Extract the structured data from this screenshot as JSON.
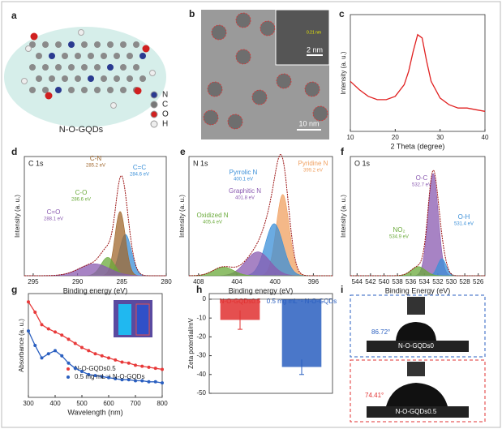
{
  "panel_labels": [
    "a",
    "b",
    "c",
    "d",
    "e",
    "f",
    "g",
    "h",
    "i"
  ],
  "panel_a": {
    "title": "N-O-GQDs",
    "legend": [
      "N",
      "C",
      "O",
      "H"
    ]
  },
  "panel_b": {
    "lattice": "0.21 nm",
    "scale_inset": "2 nm",
    "scale_main": "10 nm"
  },
  "panel_i": {
    "top_angle": "86.72°",
    "top_label": "N-O-GQDs0",
    "bottom_angle": "74.41°",
    "bottom_label": "N-O-GQDs0.5"
  },
  "chart_data": [
    {
      "type": "line",
      "xlabel": "2 Theta (degree)",
      "ylabel": "Intensity (a. u.)",
      "color": "#e02020",
      "x": [
        10,
        12,
        14,
        16,
        18,
        20,
        22,
        23,
        24,
        25,
        26,
        27,
        28,
        30,
        32,
        34,
        36,
        38,
        40
      ],
      "values": [
        40,
        35,
        31,
        29,
        29,
        31,
        38,
        46,
        58,
        68,
        66,
        52,
        40,
        30,
        26,
        24,
        24,
        23,
        22
      ],
      "xlim": [
        10,
        40
      ],
      "ylim": [
        10,
        80
      ],
      "xticks": [
        10,
        20,
        30,
        40
      ]
    },
    {
      "type": "peak_fit",
      "title": "C 1s",
      "xlabel": "Binding energy (eV)",
      "ylabel": "Intensity (a. u.)",
      "xlim": [
        296,
        280
      ],
      "ylim": [
        0,
        130
      ],
      "xticks": [
        295,
        290,
        285,
        280
      ],
      "envelope_color": "#9a1010",
      "peaks": [
        {
          "name": "C=C",
          "center": 284.6,
          "value_label": "284.6 eV",
          "height": 45,
          "width": 1.6,
          "color": "#3a8fd8"
        },
        {
          "name": "C-N",
          "center": 285.2,
          "value_label": "285.2 eV",
          "height": 70,
          "width": 1.4,
          "color": "#a0672c"
        },
        {
          "name": "C-O",
          "center": 286.6,
          "value_label": "286.6 eV",
          "height": 20,
          "width": 1.8,
          "color": "#6aaa3a"
        },
        {
          "name": "C=O",
          "center": 288.1,
          "value_label": "288.1 eV",
          "height": 13,
          "width": 4,
          "color": "#8a5ab0"
        }
      ]
    },
    {
      "type": "peak_fit",
      "title": "N 1s",
      "xlabel": "Binding energy (eV)",
      "ylabel": "Intensity (a. u.)",
      "xlim": [
        409,
        394
      ],
      "ylim": [
        0,
        110
      ],
      "xticks": [
        408,
        404,
        400,
        396
      ],
      "envelope_color": "#9a1010",
      "peaks": [
        {
          "name": "Pyridine N",
          "center": 399.2,
          "value_label": "399.2 eV",
          "height": 75,
          "width": 1.6,
          "color": "#f0a060"
        },
        {
          "name": "Pyrrolic N",
          "center": 400.1,
          "value_label": "400.1 eV",
          "height": 48,
          "width": 2.2,
          "color": "#3a8fd8"
        },
        {
          "name": "Graphitic N",
          "center": 401.8,
          "value_label": "401.8 eV",
          "height": 22,
          "width": 3,
          "color": "#8a5ab0"
        },
        {
          "name": "Oxidized N",
          "center": 405.4,
          "value_label": "405.4 eV",
          "height": 8,
          "width": 2.5,
          "color": "#6aaa3a"
        }
      ]
    },
    {
      "type": "peak_fit",
      "title": "O 1s",
      "xlabel": "Binding Energy (eV)",
      "ylabel": "Intensity (a. u.)",
      "xlim": [
        545,
        525
      ],
      "ylim": [
        0,
        105
      ],
      "xticks": [
        544,
        542,
        540,
        538,
        536,
        534,
        532,
        530,
        528,
        526
      ],
      "envelope_color": "#9a1010",
      "peaks": [
        {
          "name": "O-C",
          "center": 532.7,
          "value_label": "532.7 eV",
          "height": 90,
          "width": 1.8,
          "color": "#8a5ab0"
        },
        {
          "name": "O-H",
          "center": 531.4,
          "value_label": "531.4 eV",
          "height": 15,
          "width": 1.5,
          "color": "#3a8fd8"
        },
        {
          "name": "NO₂",
          "center": 534.9,
          "value_label": "534.9 eV",
          "height": 8,
          "width": 2.5,
          "color": "#6aaa3a"
        }
      ]
    },
    {
      "type": "line",
      "xlabel": "Wavelength (nm)",
      "ylabel": "Absorbance (a. u.)",
      "markers": true,
      "x": [
        300,
        325,
        350,
        375,
        400,
        425,
        450,
        475,
        500,
        525,
        550,
        575,
        600,
        625,
        650,
        675,
        700,
        725,
        750,
        775,
        800
      ],
      "series": [
        {
          "name": "N-O-GQDs0.5",
          "color": "#e83a3a",
          "values": [
            92,
            82,
            70,
            66,
            63,
            60,
            56,
            52,
            48,
            45,
            42,
            40,
            38,
            36,
            34,
            33,
            31,
            30,
            29,
            28,
            27
          ]
        },
        {
          "name": "0.5 mg mL⁻¹ N-O-GQDs",
          "color": "#2a5fc0",
          "values": [
            64,
            50,
            38,
            42,
            45,
            40,
            33,
            28,
            25,
            22,
            21,
            20,
            19,
            18,
            17,
            17,
            16,
            16,
            15,
            15,
            14
          ]
        }
      ],
      "xlim": [
        300,
        800
      ],
      "ylim": [
        0,
        100
      ],
      "xticks": [
        300,
        400,
        500,
        600,
        700,
        800
      ]
    },
    {
      "type": "bar",
      "ylabel": "Zeta potential/mV",
      "categories": [
        "N-O-GQDs0.5",
        "0.5 mg mL⁻¹ N-O-GQDs"
      ],
      "values": [
        -11,
        -36
      ],
      "errors": [
        5,
        4
      ],
      "colors": [
        "#e03030",
        "#2a5fc0"
      ],
      "ylim": [
        -50,
        3
      ],
      "yticks": [
        0,
        -10,
        -20,
        -30,
        -40,
        -50
      ]
    }
  ]
}
